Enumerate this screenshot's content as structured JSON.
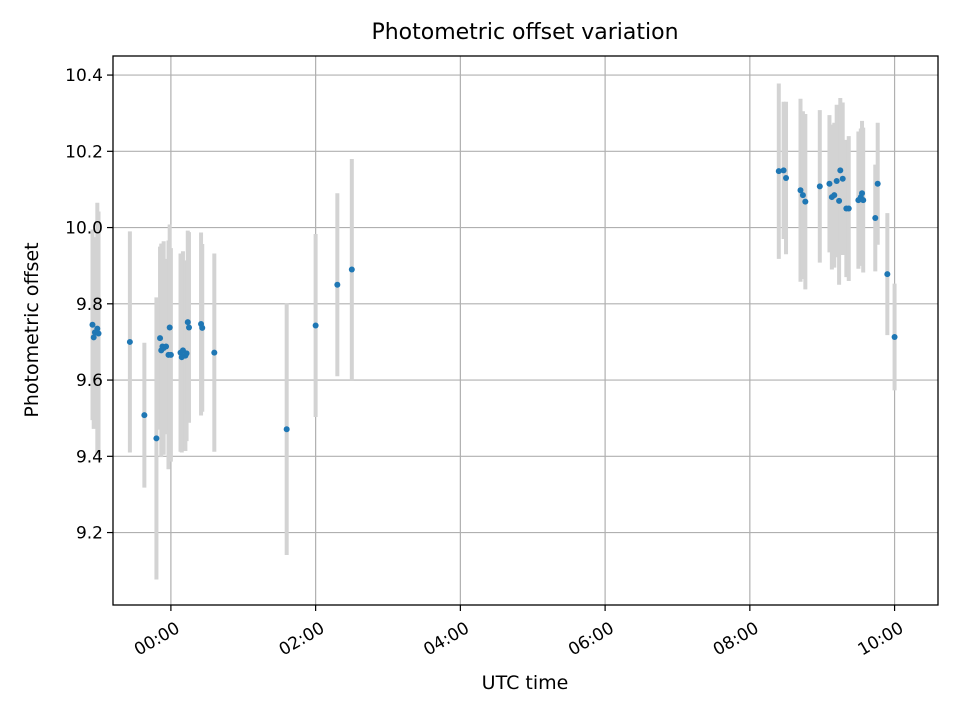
{
  "chart_data": {
    "type": "scatter",
    "title": "Photometric offset variation",
    "xlabel": "UTC time",
    "ylabel": "Photometric offset",
    "x_unit": "UTC time (hh:mm)",
    "xlim": [
      "-00:48",
      "10:36"
    ],
    "ylim": [
      9.01,
      10.45
    ],
    "x_ticks": [
      "00:00",
      "02:00",
      "04:00",
      "06:00",
      "08:00",
      "10:00"
    ],
    "y_ticks": [
      "9.2",
      "9.4",
      "9.6",
      "9.8",
      "10.0",
      "10.2",
      "10.4"
    ],
    "grid": true,
    "colors": {
      "points": "#1f77b4",
      "errorbars": "#d3d3d3",
      "grid": "#b0b0b0"
    },
    "series": [
      {
        "points": [
          {
            "x": "-01:05",
            "y": 9.745,
            "err": 0.25
          },
          {
            "x": "-01:04",
            "y": 9.712,
            "err": 0.24
          },
          {
            "x": "-01:03",
            "y": 9.725,
            "err": 0.25
          },
          {
            "x": "-01:01",
            "y": 9.735,
            "err": 0.33
          },
          {
            "x": "-01:00",
            "y": 9.722,
            "err": 0.32
          },
          {
            "x": "-00:34",
            "y": 9.7,
            "err": 0.29
          },
          {
            "x": "-00:22",
            "y": 9.508,
            "err": 0.19
          },
          {
            "x": "-00:12",
            "y": 9.447,
            "err": 0.37
          },
          {
            "x": "-00:09",
            "y": 9.71,
            "err": 0.24
          },
          {
            "x": "-00:08",
            "y": 9.678,
            "err": 0.28
          },
          {
            "x": "-00:07",
            "y": 9.688,
            "err": 0.27
          },
          {
            "x": "-00:06",
            "y": 9.684,
            "err": 0.28
          },
          {
            "x": "-00:04",
            "y": 9.688,
            "err": 0.23
          },
          {
            "x": "-00:02",
            "y": 9.666,
            "err": 0.3
          },
          {
            "x": "-00:01",
            "y": 9.738,
            "err": 0.27
          },
          {
            "x": "00:00",
            "y": 9.666,
            "err": 0.28
          },
          {
            "x": "00:08",
            "y": 9.672,
            "err": 0.26
          },
          {
            "x": "00:09",
            "y": 9.66,
            "err": 0.25
          },
          {
            "x": "00:10",
            "y": 9.678,
            "err": 0.26
          },
          {
            "x": "00:12",
            "y": 9.664,
            "err": 0.25
          },
          {
            "x": "00:13",
            "y": 9.67,
            "err": 0.23
          },
          {
            "x": "00:14",
            "y": 9.752,
            "err": 0.24
          },
          {
            "x": "00:15",
            "y": 9.738,
            "err": 0.25
          },
          {
            "x": "00:25",
            "y": 9.747,
            "err": 0.24
          },
          {
            "x": "00:26",
            "y": 9.737,
            "err": 0.22
          },
          {
            "x": "00:36",
            "y": 9.672,
            "err": 0.26
          },
          {
            "x": "01:36",
            "y": 9.471,
            "err": 0.33
          },
          {
            "x": "02:00",
            "y": 9.743,
            "err": 0.24
          },
          {
            "x": "02:18",
            "y": 9.85,
            "err": 0.24
          },
          {
            "x": "02:30",
            "y": 9.89,
            "err": 0.29
          },
          {
            "x": "08:24",
            "y": 10.148,
            "err": 0.23
          },
          {
            "x": "08:28",
            "y": 10.15,
            "err": 0.18
          },
          {
            "x": "08:30",
            "y": 10.13,
            "err": 0.2
          },
          {
            "x": "08:42",
            "y": 10.098,
            "err": 0.24
          },
          {
            "x": "08:44",
            "y": 10.085,
            "err": 0.22
          },
          {
            "x": "08:46",
            "y": 10.068,
            "err": 0.23
          },
          {
            "x": "08:58",
            "y": 10.108,
            "err": 0.2
          },
          {
            "x": "09:06",
            "y": 10.115,
            "err": 0.18
          },
          {
            "x": "09:08",
            "y": 10.08,
            "err": 0.19
          },
          {
            "x": "09:10",
            "y": 10.085,
            "err": 0.19
          },
          {
            "x": "09:12",
            "y": 10.122,
            "err": 0.2
          },
          {
            "x": "09:14",
            "y": 10.07,
            "err": 0.22
          },
          {
            "x": "09:15",
            "y": 10.15,
            "err": 0.19
          },
          {
            "x": "09:17",
            "y": 10.128,
            "err": 0.2
          },
          {
            "x": "09:20",
            "y": 10.05,
            "err": 0.18
          },
          {
            "x": "09:22",
            "y": 10.05,
            "err": 0.19
          },
          {
            "x": "09:30",
            "y": 10.072,
            "err": 0.18
          },
          {
            "x": "09:32",
            "y": 10.08,
            "err": 0.18
          },
          {
            "x": "09:33",
            "y": 10.09,
            "err": 0.19
          },
          {
            "x": "09:34",
            "y": 10.072,
            "err": 0.19
          },
          {
            "x": "09:44",
            "y": 10.025,
            "err": 0.14
          },
          {
            "x": "09:46",
            "y": 10.115,
            "err": 0.16
          },
          {
            "x": "09:54",
            "y": 9.878,
            "err": 0.16
          },
          {
            "x": "10:00",
            "y": 9.713,
            "err": 0.14
          }
        ]
      }
    ]
  }
}
